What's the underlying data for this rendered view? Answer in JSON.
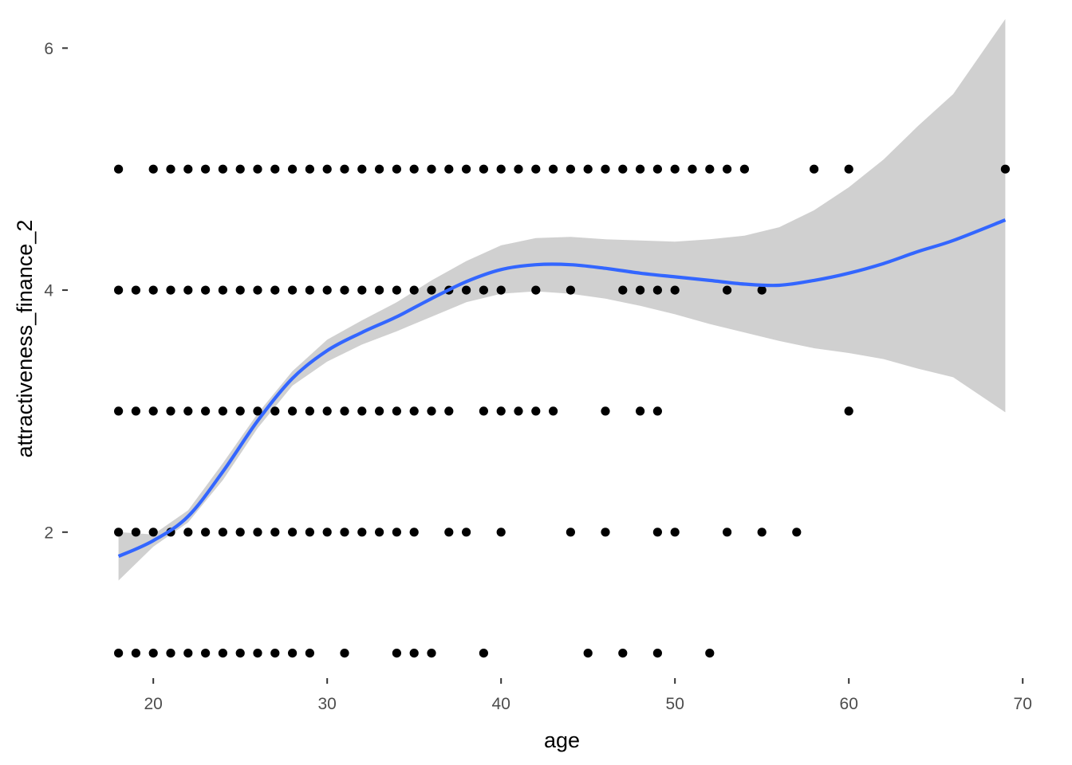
{
  "chart_data": {
    "type": "scatter",
    "title": "",
    "xlabel": "age",
    "ylabel": "attractiveness_finance_2",
    "xlim": [
      15.45,
      71.55
    ],
    "ylim": [
      0.8,
      6.2
    ],
    "x_ticks": [
      20,
      30,
      40,
      50,
      60,
      70
    ],
    "y_ticks": [
      2,
      4,
      6
    ],
    "x_tick_labels": [
      "20",
      "30",
      "40",
      "50",
      "60",
      "70"
    ],
    "y_tick_labels": [
      "2",
      "4",
      "6"
    ],
    "grid": false,
    "legend": "none",
    "colors": {
      "points": "#000000",
      "smooth_line": "#3366FF",
      "ribbon": "#BEBEBE"
    },
    "series": [
      {
        "y": 1,
        "x": [
          18,
          19,
          20,
          21,
          22,
          23,
          24,
          25,
          26,
          27,
          28,
          29,
          31,
          34,
          35,
          36,
          39,
          45,
          47,
          49,
          52
        ]
      },
      {
        "y": 2,
        "x": [
          18,
          19,
          20,
          21,
          22,
          23,
          24,
          25,
          26,
          27,
          28,
          29,
          30,
          31,
          32,
          33,
          34,
          35,
          37,
          38,
          40,
          44,
          46,
          49,
          50,
          53,
          55,
          57
        ]
      },
      {
        "y": 3,
        "x": [
          18,
          19,
          20,
          21,
          22,
          23,
          24,
          25,
          26,
          27,
          28,
          29,
          30,
          31,
          32,
          33,
          34,
          35,
          36,
          37,
          39,
          40,
          41,
          42,
          43,
          46,
          48,
          49,
          60
        ]
      },
      {
        "y": 4,
        "x": [
          18,
          19,
          20,
          21,
          22,
          23,
          24,
          25,
          26,
          27,
          28,
          29,
          30,
          31,
          32,
          33,
          34,
          35,
          36,
          37,
          38,
          39,
          40,
          42,
          44,
          47,
          48,
          49,
          50,
          53,
          55
        ]
      },
      {
        "y": 5,
        "x": [
          18,
          20,
          21,
          22,
          23,
          24,
          25,
          26,
          27,
          28,
          29,
          30,
          31,
          32,
          33,
          34,
          35,
          36,
          37,
          38,
          39,
          40,
          41,
          42,
          43,
          44,
          45,
          46,
          47,
          48,
          49,
          50,
          51,
          52,
          53,
          54,
          58,
          60,
          69
        ]
      }
    ],
    "smooth": {
      "x": [
        18,
        20,
        22,
        24,
        26,
        28,
        30,
        32,
        34,
        36,
        38,
        40,
        42,
        44,
        46,
        48,
        50,
        52,
        54,
        56,
        58,
        60,
        62,
        64,
        66,
        69
      ],
      "y": [
        1.8,
        1.93,
        2.13,
        2.5,
        2.92,
        3.27,
        3.5,
        3.65,
        3.78,
        3.93,
        4.07,
        4.17,
        4.21,
        4.21,
        4.18,
        4.14,
        4.11,
        4.08,
        4.05,
        4.04,
        4.08,
        4.14,
        4.22,
        4.32,
        4.41,
        4.58
      ],
      "ymin": [
        1.6,
        1.88,
        2.08,
        2.43,
        2.86,
        3.21,
        3.41,
        3.55,
        3.66,
        3.78,
        3.9,
        3.97,
        3.99,
        3.97,
        3.93,
        3.87,
        3.8,
        3.72,
        3.65,
        3.58,
        3.52,
        3.48,
        3.43,
        3.35,
        3.28,
        2.99
      ],
      "ymax": [
        2.0,
        1.98,
        2.18,
        2.57,
        2.98,
        3.33,
        3.59,
        3.75,
        3.9,
        4.08,
        4.24,
        4.37,
        4.43,
        4.44,
        4.42,
        4.41,
        4.4,
        4.42,
        4.45,
        4.52,
        4.66,
        4.85,
        5.08,
        5.36,
        5.62,
        6.24
      ]
    }
  }
}
